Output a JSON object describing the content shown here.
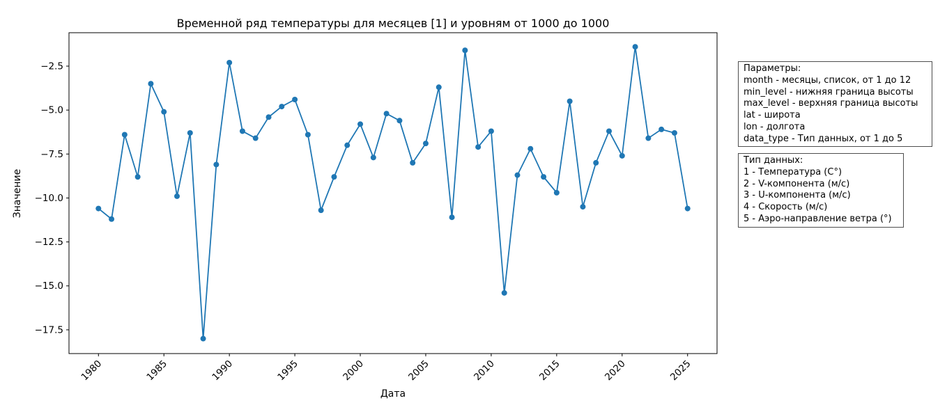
{
  "chart_data": {
    "type": "line",
    "title": "Временной ряд температуры для месяцев [1] и уровням от 1000 до 1000",
    "xlabel": "Дата",
    "ylabel": "Значение",
    "x": [
      1980,
      1981,
      1982,
      1983,
      1984,
      1985,
      1986,
      1987,
      1988,
      1989,
      1990,
      1991,
      1992,
      1993,
      1994,
      1995,
      1996,
      1997,
      1998,
      1999,
      2000,
      2001,
      2002,
      2003,
      2004,
      2005,
      2006,
      2007,
      2008,
      2009,
      2010,
      2011,
      2012,
      2013,
      2014,
      2015,
      2016,
      2017,
      2018,
      2019,
      2020,
      2021,
      2022,
      2023,
      2024,
      2025
    ],
    "values": [
      -10.6,
      -11.2,
      -6.4,
      -8.8,
      -3.5,
      -5.1,
      -9.9,
      -6.3,
      -18.0,
      -8.1,
      -2.3,
      -6.2,
      -6.6,
      -5.4,
      -4.8,
      -4.4,
      -6.4,
      -10.7,
      -8.8,
      -7.0,
      -5.8,
      -7.7,
      -5.2,
      -5.6,
      -8.0,
      -6.9,
      -3.7,
      -11.1,
      -1.6,
      -7.1,
      -6.2,
      -15.4,
      -8.7,
      -7.2,
      -8.8,
      -9.7,
      -4.5,
      -10.5,
      -8.0,
      -6.2,
      -7.6,
      -1.4,
      -6.6,
      -6.1,
      -6.3,
      -10.6
    ],
    "x_ticks": [
      1980,
      1985,
      1990,
      1995,
      2000,
      2005,
      2010,
      2015,
      2020,
      2025
    ],
    "y_ticks": [
      -2.5,
      -5.0,
      -7.5,
      -10.0,
      -12.5,
      -15.0,
      -17.5
    ],
    "xlim": [
      1977.75,
      2027.25
    ],
    "ylim": [
      -18.85,
      -0.6
    ],
    "grid": false,
    "legend": "none",
    "marker": "o",
    "line_color": "#1f77b4"
  },
  "annotations": {
    "param_box": {
      "lines": [
        "Параметры:",
        "month - месяцы, список, от 1 до 12",
        "min_level - нижняя граница высоты",
        "max_level - верхняя граница высоты",
        "lat - широта",
        "lon - долгота",
        "data_type - Тип данных, от 1 до 5"
      ]
    },
    "type_box": {
      "lines": [
        "Тип данных:",
        "1 - Температура (C°)",
        "2 - V-компонента (м/с)",
        "3 - U-компонента (м/с)",
        "4 - Скорость (м/с)",
        "5 - Аэро-направление ветра (°)"
      ]
    }
  },
  "colors": {
    "line": "#1f77b4",
    "spine": "#000000",
    "box_border": "#4d4d4d",
    "background": "#ffffff"
  }
}
